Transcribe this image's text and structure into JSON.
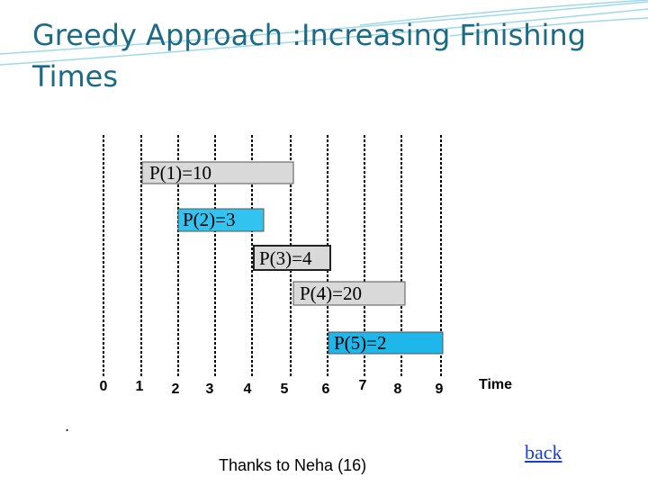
{
  "header": {
    "title": "Greedy Approach :Increasing Finishing Times"
  },
  "intervals": [
    {
      "label": "P(1)=10"
    },
    {
      "label": "P(2)=3"
    },
    {
      "label": "P(3)=4"
    },
    {
      "label": "P(4)=20"
    },
    {
      "label": "P(5)=2"
    }
  ],
  "axis": {
    "labels": [
      "0",
      "1",
      "2",
      "3",
      "4",
      "5",
      "6",
      "7",
      "8",
      "9"
    ],
    "title": "Time"
  },
  "note": ".",
  "footer": {
    "credit": "Thanks to Neha (16)",
    "link": "back"
  }
}
